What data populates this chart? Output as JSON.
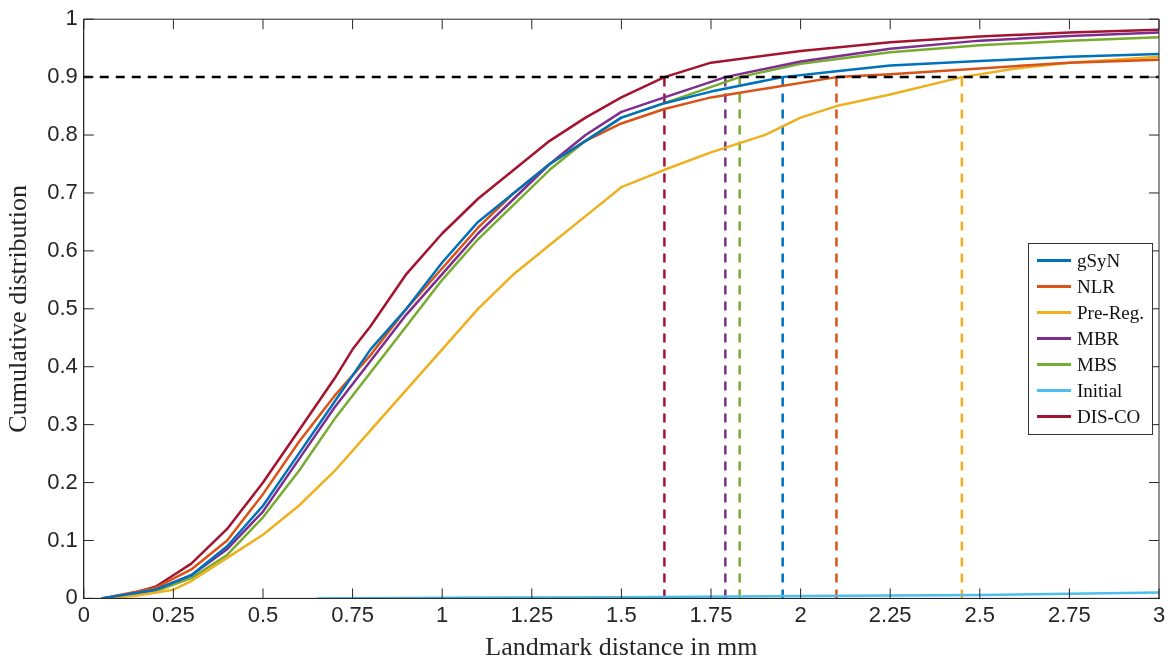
{
  "chart_data": {
    "type": "line",
    "xlabel": "Landmark distance in mm",
    "ylabel": "Cumulative distribution",
    "xlim": [
      0,
      3
    ],
    "xticks": [
      0,
      0.25,
      0.5,
      0.75,
      1,
      1.25,
      1.5,
      1.75,
      2,
      2.25,
      2.5,
      2.75,
      3
    ],
    "ylim": [
      0,
      1
    ],
    "yticks": [
      0,
      0.1,
      0.2,
      0.3,
      0.4,
      0.5,
      0.6,
      0.7,
      0.8,
      0.9,
      1
    ],
    "grid": false,
    "legend": "right",
    "marker": "none",
    "line_style": "solid",
    "ref_lines": [
      {
        "axis": "y",
        "value": 0.9,
        "color": "#000000",
        "line_style": "dashed"
      }
    ],
    "series": [
      {
        "name": "gSyN",
        "color": "#0072bd",
        "x": [
          0.05,
          0.2,
          0.3,
          0.4,
          0.5,
          0.6,
          0.7,
          0.8,
          0.9,
          1.0,
          1.1,
          1.2,
          1.3,
          1.4,
          1.5,
          1.62,
          1.75,
          1.95,
          2.1,
          2.25,
          2.5,
          2.75,
          3
        ],
        "values": [
          0,
          0.015,
          0.04,
          0.09,
          0.16,
          0.25,
          0.34,
          0.43,
          0.5,
          0.58,
          0.65,
          0.7,
          0.75,
          0.79,
          0.83,
          0.855,
          0.875,
          0.9,
          0.91,
          0.92,
          0.928,
          0.935,
          0.94
        ]
      },
      {
        "name": "NLR",
        "color": "#d95319",
        "x": [
          0.05,
          0.2,
          0.3,
          0.4,
          0.5,
          0.6,
          0.7,
          0.8,
          0.9,
          1.0,
          1.1,
          1.2,
          1.3,
          1.4,
          1.5,
          1.62,
          1.75,
          1.9,
          2.1,
          2.25,
          2.5,
          2.75,
          3
        ],
        "values": [
          0,
          0.018,
          0.05,
          0.1,
          0.18,
          0.27,
          0.35,
          0.42,
          0.5,
          0.57,
          0.64,
          0.7,
          0.75,
          0.79,
          0.82,
          0.845,
          0.865,
          0.88,
          0.9,
          0.905,
          0.915,
          0.925,
          0.93
        ]
      },
      {
        "name": "Pre-Reg.",
        "color": "#edb120",
        "x": [
          0.05,
          0.15,
          0.25,
          0.3,
          0.4,
          0.5,
          0.6,
          0.7,
          0.8,
          0.9,
          1.0,
          1.1,
          1.2,
          1.3,
          1.4,
          1.5,
          1.62,
          1.75,
          1.9,
          2.0,
          2.1,
          2.25,
          2.45,
          2.6,
          2.75,
          3
        ],
        "values": [
          0,
          0.005,
          0.015,
          0.03,
          0.07,
          0.11,
          0.16,
          0.22,
          0.29,
          0.36,
          0.43,
          0.5,
          0.56,
          0.61,
          0.66,
          0.71,
          0.74,
          0.77,
          0.8,
          0.83,
          0.85,
          0.87,
          0.9,
          0.915,
          0.925,
          0.935
        ]
      },
      {
        "name": "MBR",
        "color": "#7e2f8e",
        "x": [
          0.05,
          0.2,
          0.3,
          0.4,
          0.5,
          0.6,
          0.7,
          0.8,
          0.9,
          1.0,
          1.1,
          1.2,
          1.3,
          1.4,
          1.5,
          1.62,
          1.79,
          2,
          2.25,
          2.5,
          2.75,
          3
        ],
        "values": [
          0,
          0.015,
          0.04,
          0.085,
          0.15,
          0.24,
          0.33,
          0.41,
          0.49,
          0.56,
          0.63,
          0.69,
          0.75,
          0.8,
          0.84,
          0.865,
          0.9,
          0.927,
          0.949,
          0.963,
          0.971,
          0.977
        ]
      },
      {
        "name": "MBS",
        "color": "#77ac30",
        "x": [
          0.05,
          0.2,
          0.3,
          0.4,
          0.5,
          0.6,
          0.7,
          0.8,
          0.9,
          1.0,
          1.1,
          1.2,
          1.3,
          1.4,
          1.5,
          1.62,
          1.83,
          2,
          2.25,
          2.5,
          2.75,
          3
        ],
        "values": [
          0,
          0.012,
          0.035,
          0.075,
          0.14,
          0.22,
          0.31,
          0.39,
          0.47,
          0.55,
          0.62,
          0.68,
          0.74,
          0.79,
          0.83,
          0.855,
          0.9,
          0.923,
          0.943,
          0.955,
          0.963,
          0.969
        ]
      },
      {
        "name": "Initial",
        "color": "#4dbeee",
        "x": [
          0.65,
          1,
          1.5,
          2,
          2.5,
          3
        ],
        "values": [
          0,
          0.001,
          0.002,
          0.004,
          0.006,
          0.01
        ]
      },
      {
        "name": "DIS-CO",
        "color": "#a2142f",
        "x": [
          0.05,
          0.1,
          0.2,
          0.25,
          0.3,
          0.4,
          0.5,
          0.6,
          0.7,
          0.75,
          0.8,
          0.9,
          1.0,
          1.1,
          1.2,
          1.3,
          1.4,
          1.5,
          1.62,
          1.75,
          2,
          2.25,
          2.5,
          2.75,
          3
        ],
        "values": [
          0,
          0.003,
          0.02,
          0.04,
          0.06,
          0.12,
          0.2,
          0.29,
          0.38,
          0.43,
          0.47,
          0.56,
          0.63,
          0.69,
          0.74,
          0.79,
          0.83,
          0.865,
          0.9,
          0.925,
          0.945,
          0.96,
          0.97,
          0.977,
          0.982
        ]
      },
      {
        "type": "line",
        "color": "#a2142f",
        "line_style": "dashed",
        "x": [
          1.62,
          1.62
        ],
        "values": [
          0,
          0.9
        ]
      },
      {
        "type": "line",
        "color": "#7e2f8e",
        "line_style": "dashed",
        "x": [
          1.79,
          1.79
        ],
        "values": [
          0,
          0.9
        ]
      },
      {
        "type": "line",
        "color": "#77ac30",
        "line_style": "dashed",
        "x": [
          1.83,
          1.83
        ],
        "values": [
          0,
          0.9
        ]
      },
      {
        "type": "line",
        "color": "#0072bd",
        "line_style": "dashed",
        "x": [
          1.95,
          1.95
        ],
        "values": [
          0,
          0.9
        ]
      },
      {
        "type": "line",
        "color": "#d95319",
        "line_style": "dashed",
        "x": [
          2.1,
          2.1
        ],
        "values": [
          0,
          0.9
        ]
      },
      {
        "type": "line",
        "color": "#edb120",
        "line_style": "dashed",
        "x": [
          2.45,
          2.45
        ],
        "values": [
          0,
          0.9
        ]
      }
    ]
  }
}
